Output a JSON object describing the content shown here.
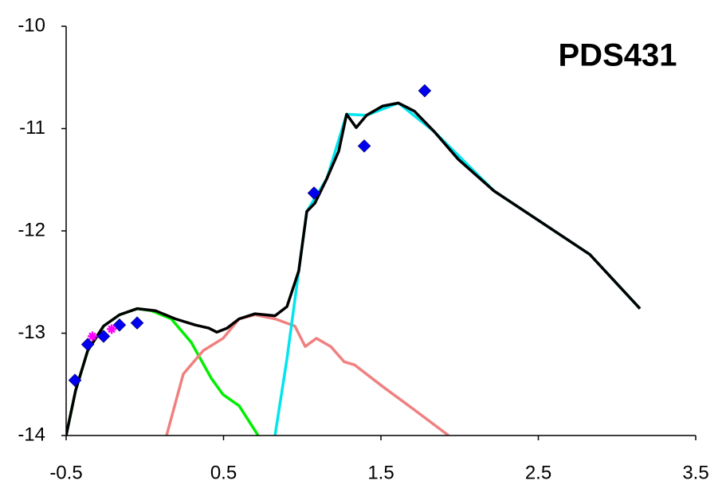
{
  "chart_data": {
    "type": "line",
    "title": "PDS431",
    "xlim": [
      -0.5,
      3.5
    ],
    "xticks": [
      -0.5,
      0.5,
      1.5,
      2.5,
      3.5
    ],
    "ylim": [
      -14,
      -10
    ],
    "yticks": [
      -10,
      -11,
      -12,
      -13,
      -14
    ],
    "grid": false,
    "series": [
      {
        "type": "line",
        "color": "#00ee00",
        "x": [
          -0.5,
          -0.44,
          -0.363,
          -0.262,
          -0.161,
          -0.049,
          0.042,
          0.168,
          0.295,
          0.422,
          0.497,
          0.599,
          0.72
        ],
        "values": [
          -14,
          -13.56,
          -13.17,
          -12.93,
          -12.82,
          -12.76,
          -12.78,
          -12.86,
          -13.09,
          -13.44,
          -13.6,
          -13.71,
          -14
        ]
      },
      {
        "type": "line",
        "color": "#f08080",
        "x": [
          0.138,
          0.244,
          0.371,
          0.497,
          0.599,
          0.7,
          0.827,
          0.953,
          1.019,
          1.09,
          1.181,
          1.267,
          1.333,
          1.51,
          1.713,
          1.93
        ],
        "values": [
          -14,
          -13.4,
          -13.17,
          -13.05,
          -12.86,
          -12.82,
          -12.86,
          -12.93,
          -13.13,
          -13.05,
          -13.13,
          -13.28,
          -13.31,
          -13.52,
          -13.75,
          -14
        ]
      },
      {
        "type": "line",
        "color": "#00e5ee",
        "x": [
          0.827,
          0.903,
          0.978,
          1.029,
          1.156,
          1.282,
          1.409,
          1.611,
          1.839,
          2.219,
          2.827,
          3.146
        ],
        "values": [
          -14,
          -13.25,
          -12.39,
          -11.81,
          -11.49,
          -10.86,
          -10.87,
          -10.75,
          -11.03,
          -11.61,
          -12.23,
          -12.76
        ]
      },
      {
        "type": "line",
        "color": "#000000",
        "x": [
          -0.5,
          -0.44,
          -0.363,
          -0.262,
          -0.161,
          -0.049,
          0.067,
          0.194,
          0.32,
          0.406,
          0.457,
          0.523,
          0.599,
          0.7,
          0.827,
          0.903,
          0.978,
          1.029,
          1.08,
          1.156,
          1.232,
          1.282,
          1.343,
          1.409,
          1.51,
          1.611,
          1.713,
          1.839,
          1.991,
          2.219,
          2.523,
          2.827,
          3.146
        ],
        "values": [
          -14,
          -13.56,
          -13.17,
          -12.93,
          -12.82,
          -12.76,
          -12.78,
          -12.86,
          -12.92,
          -12.95,
          -12.99,
          -12.95,
          -12.86,
          -12.81,
          -12.83,
          -12.74,
          -12.39,
          -11.81,
          -11.73,
          -11.49,
          -11.22,
          -10.86,
          -10.99,
          -10.87,
          -10.78,
          -10.75,
          -10.83,
          -11.03,
          -11.3,
          -11.61,
          -11.92,
          -12.23,
          -12.76
        ]
      },
      {
        "type": "scatter",
        "color": "#0000ee",
        "marker": "diamond",
        "x": [
          -0.444,
          -0.363,
          -0.262,
          -0.161,
          -0.049,
          1.075,
          1.394,
          1.778
        ],
        "values": [
          -13.46,
          -13.11,
          -13.03,
          -12.92,
          -12.9,
          -11.63,
          -11.17,
          -10.63
        ]
      },
      {
        "type": "scatter",
        "color": "#ff00ff",
        "marker": "star",
        "x": [
          -0.333,
          -0.211
        ],
        "values": [
          -13.03,
          -12.96
        ]
      }
    ]
  }
}
